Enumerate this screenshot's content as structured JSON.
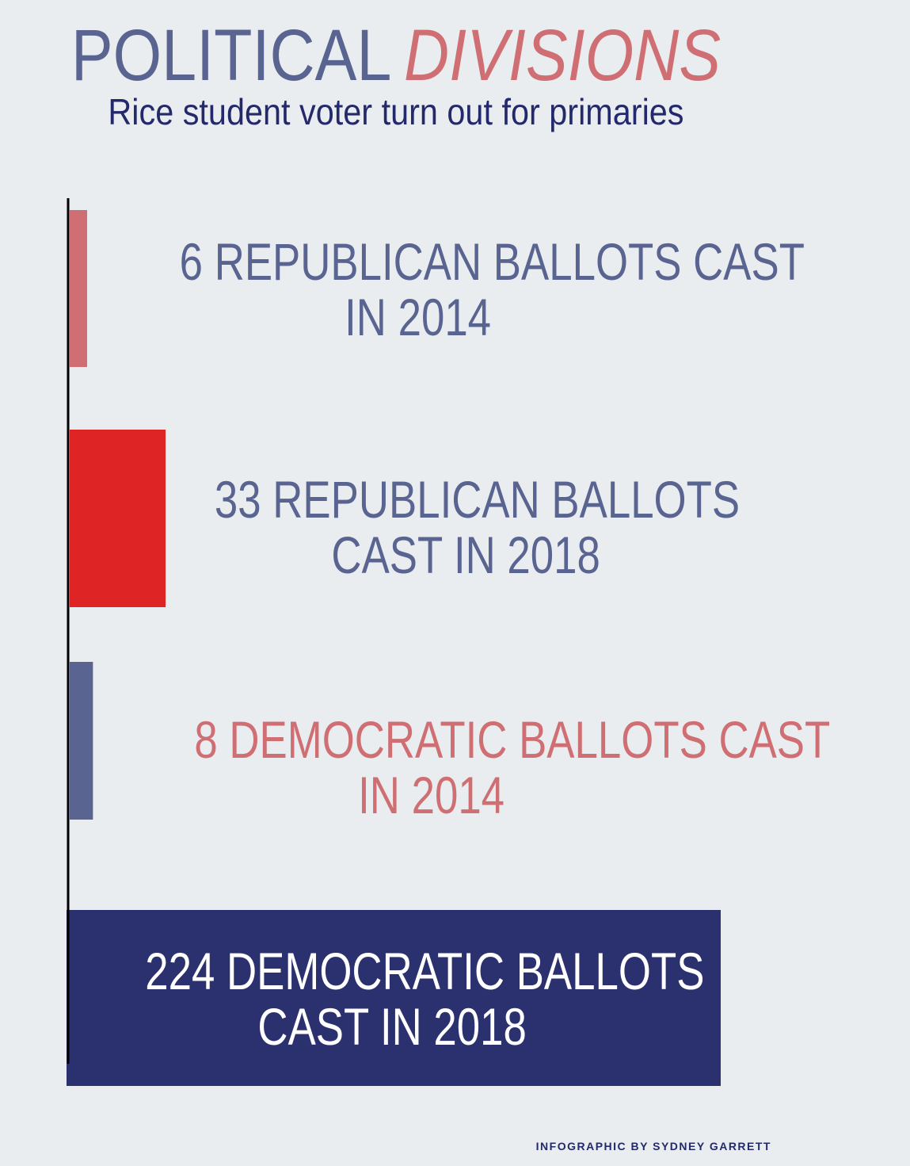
{
  "header": {
    "title_part1": "POLITICAL",
    "title_part2": "DIVISIONS",
    "subtitle": "Rice student voter turn out for primaries"
  },
  "chart_data": {
    "type": "bar",
    "orientation": "horizontal",
    "title": "POLITICAL DIVISIONS",
    "subtitle": "Rice student voter turn out for primaries",
    "categories": [
      "Republican 2014",
      "Republican 2018",
      "Democratic 2014",
      "Democratic 2018"
    ],
    "values": [
      6,
      33,
      8,
      224
    ],
    "labels": [
      [
        "6 REPUBLICAN BALLOTS CAST",
        "IN 2014"
      ],
      [
        "33 REPUBLICAN BALLOTS",
        "CAST IN 2018"
      ],
      [
        "8 DEMOCRATIC BALLOTS CAST",
        "IN 2014"
      ],
      [
        "224 DEMOCRATIC BALLOTS",
        "CAST IN 2018"
      ]
    ],
    "colors": [
      "#cf6f73",
      "#de2424",
      "#5a6491",
      "#2b306e"
    ],
    "label_colors": [
      "#5a6491",
      "#5a6491",
      "#cf6f73",
      "#ffffff"
    ],
    "xlim": [
      0,
      224
    ]
  },
  "footer": {
    "credit": "INFOGRAPHIC BY SYDNEY GARRETT"
  }
}
